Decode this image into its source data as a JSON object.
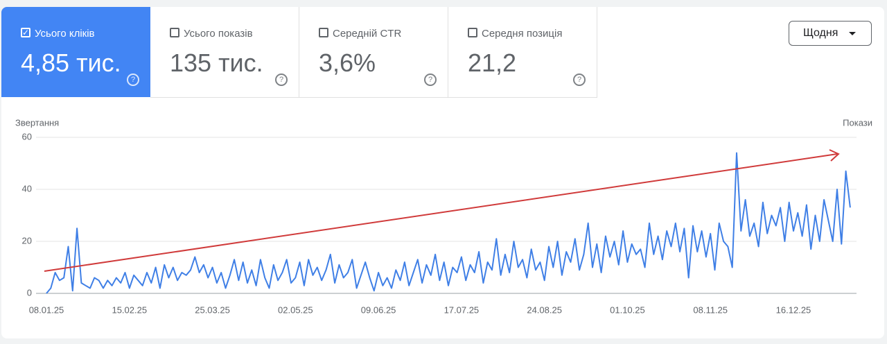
{
  "metrics": [
    {
      "label": "Усього кліків",
      "value": "4,85 тис.",
      "checked": true
    },
    {
      "label": "Усього показів",
      "value": "135 тис.",
      "checked": false
    },
    {
      "label": "Середній CTR",
      "value": "3,6%",
      "checked": false
    },
    {
      "label": "Середня позиція",
      "value": "21,2",
      "checked": false
    }
  ],
  "period": "Щодня",
  "chart_data": {
    "type": "line",
    "y_label": "Звертання",
    "y2_label": "Покази",
    "color": "#3f7fe6",
    "ylim": [
      0,
      60
    ],
    "yticks": [
      0,
      20,
      40,
      60
    ],
    "grid": true,
    "categories": [
      "08.01.25",
      null,
      null,
      null,
      null,
      null,
      null,
      null,
      null,
      null,
      null,
      null,
      null,
      null,
      null,
      null,
      null,
      null,
      null,
      "15.02.25",
      null,
      null,
      null,
      null,
      null,
      null,
      null,
      null,
      null,
      null,
      null,
      null,
      null,
      null,
      null,
      null,
      null,
      null,
      "25.03.25",
      null,
      null,
      null,
      null,
      null,
      null,
      null,
      null,
      null,
      null,
      null,
      null,
      null,
      null,
      null,
      null,
      null,
      null,
      "02.05.25",
      null,
      null,
      null,
      null,
      null,
      null,
      null,
      null,
      null,
      null,
      null,
      null,
      null,
      null,
      null,
      null,
      null,
      null,
      "09.06.25",
      null,
      null,
      null,
      null,
      null,
      null,
      null,
      null,
      null,
      null,
      null,
      null,
      null,
      null,
      null,
      null,
      null,
      null,
      "17.07.25",
      null,
      null,
      null,
      null,
      null,
      null,
      null,
      null,
      null,
      null,
      null,
      null,
      null,
      null,
      null,
      null,
      null,
      null,
      "24.08.25",
      null,
      null,
      null,
      null,
      null,
      null,
      null,
      null,
      null,
      null,
      null,
      null,
      null,
      null,
      null,
      null,
      null,
      null,
      "01.10.25",
      null,
      null,
      null,
      null,
      null,
      null,
      null,
      null,
      null,
      null,
      null,
      null,
      null,
      null,
      null,
      null,
      null,
      null,
      "08.11.25",
      null,
      null,
      null,
      null,
      null,
      null,
      null,
      null,
      null,
      null,
      null,
      null,
      null,
      null,
      null,
      null,
      null,
      null,
      "16.12.25",
      null,
      null,
      null,
      null,
      null,
      null,
      null,
      null,
      null,
      null,
      null,
      null,
      null
    ],
    "values": [
      0,
      2,
      8,
      5,
      6,
      18,
      1,
      25,
      4,
      3,
      2,
      6,
      5,
      2,
      5,
      3,
      6,
      4,
      8,
      2,
      7,
      5,
      3,
      8,
      4,
      10,
      2,
      11,
      6,
      10,
      5,
      8,
      7,
      9,
      14,
      8,
      11,
      6,
      10,
      4,
      8,
      2,
      7,
      13,
      5,
      12,
      4,
      9,
      3,
      13,
      6,
      2,
      11,
      5,
      8,
      13,
      4,
      6,
      12,
      3,
      13,
      7,
      10,
      5,
      9,
      15,
      4,
      11,
      6,
      8,
      13,
      2,
      7,
      12,
      6,
      1,
      8,
      3,
      6,
      2,
      9,
      5,
      12,
      3,
      8,
      13,
      4,
      11,
      7,
      15,
      5,
      12,
      3,
      10,
      8,
      14,
      5,
      11,
      8,
      16,
      4,
      12,
      9,
      21,
      7,
      15,
      8,
      20,
      10,
      13,
      6,
      17,
      9,
      12,
      5,
      18,
      10,
      20,
      7,
      16,
      12,
      21,
      9,
      15,
      27,
      10,
      19,
      8,
      22,
      14,
      20,
      11,
      24,
      12,
      19,
      15,
      17,
      10,
      27,
      15,
      22,
      13,
      24,
      18,
      27,
      16,
      25,
      6,
      26,
      16,
      24,
      14,
      23,
      9,
      27,
      20,
      18,
      10,
      54,
      24,
      36,
      22,
      27,
      18,
      35,
      23,
      30,
      26,
      33,
      20,
      35,
      24,
      31,
      22,
      34,
      17,
      30,
      20,
      36,
      28,
      20,
      40,
      19,
      47,
      33
    ]
  }
}
